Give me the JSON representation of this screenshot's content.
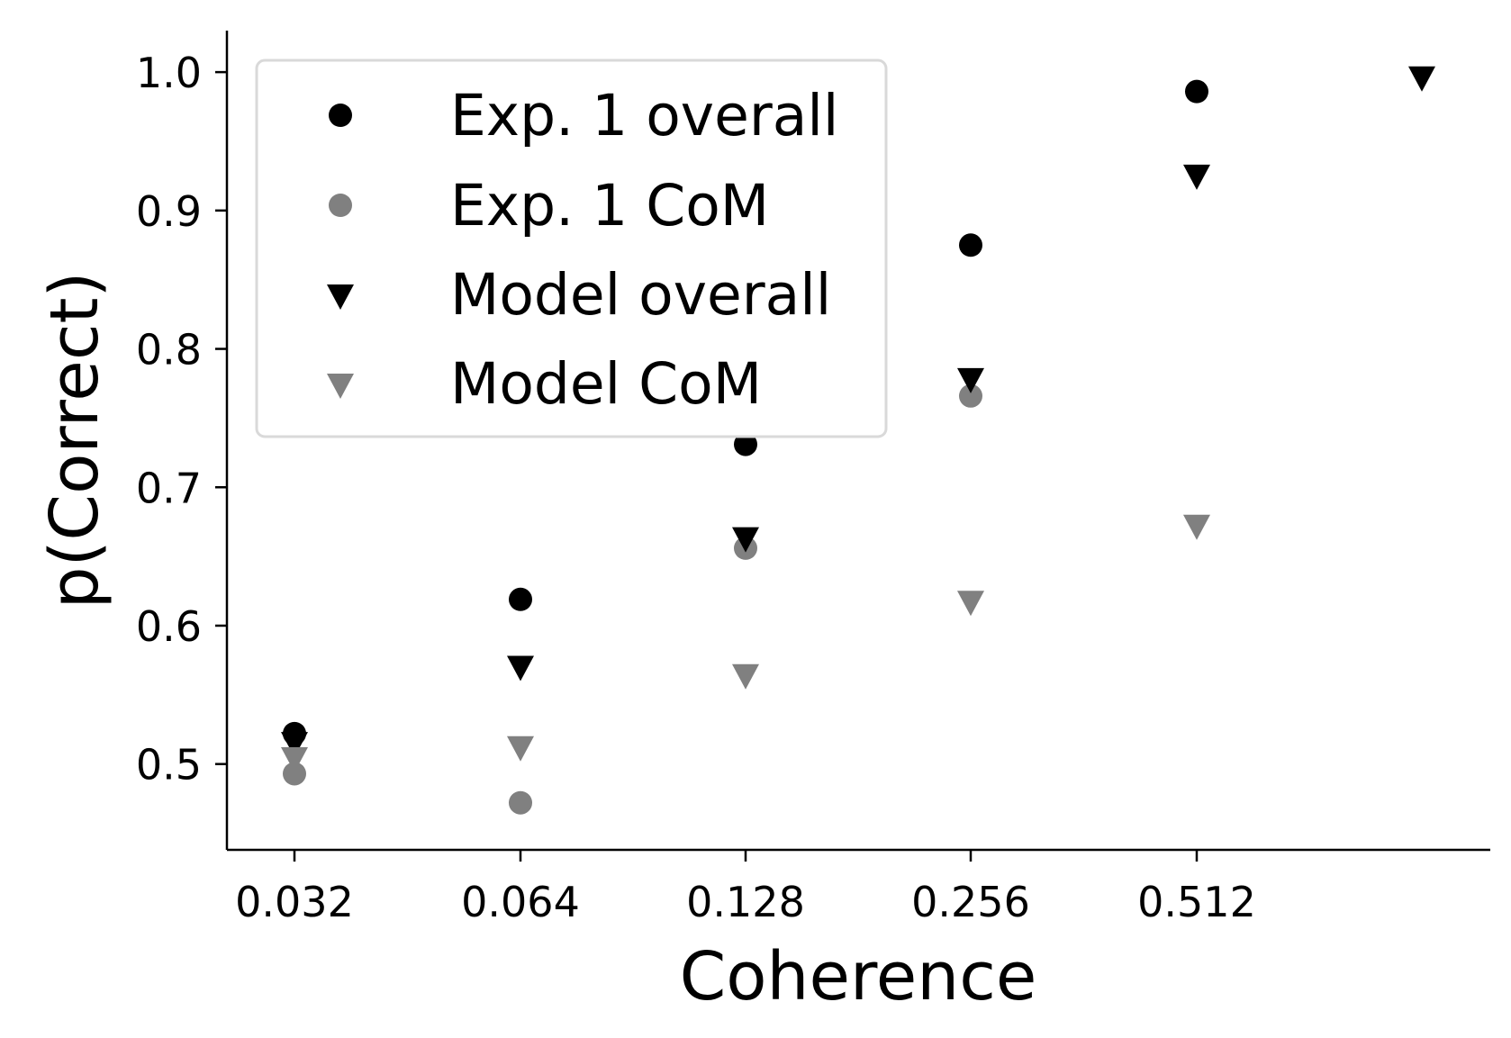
{
  "chart_data": {
    "type": "scatter",
    "xlabel": "Coherence",
    "ylabel": "p(Correct)",
    "x_ticks": [
      "0.032",
      "0.064",
      "0.128",
      "0.256",
      "0.512"
    ],
    "y_ticks": [
      "0.5",
      "0.6",
      "0.7",
      "0.8",
      "0.9",
      "1.0"
    ],
    "ylim": [
      0.438,
      1.03
    ],
    "grid": false,
    "legend_position": "upper-left",
    "series": [
      {
        "name": "Exp. 1 overall",
        "marker": "circle",
        "color": "#000000",
        "points": [
          {
            "x": "0.032",
            "y": 0.522
          },
          {
            "x": "0.064",
            "y": 0.619
          },
          {
            "x": "0.128",
            "y": 0.731
          },
          {
            "x": "0.256",
            "y": 0.875
          },
          {
            "x": "0.512",
            "y": 0.986
          }
        ]
      },
      {
        "name": "Exp. 1 CoM",
        "marker": "circle",
        "color": "#808080",
        "points": [
          {
            "x": "0.032",
            "y": 0.493
          },
          {
            "x": "0.064",
            "y": 0.472
          },
          {
            "x": "0.128",
            "y": 0.656
          },
          {
            "x": "0.256",
            "y": 0.766
          }
        ]
      },
      {
        "name": "Model overall",
        "marker": "triangle-down",
        "color": "#000000",
        "points": [
          {
            "x": "0.032",
            "y": 0.516
          },
          {
            "x": "0.064",
            "y": 0.571
          },
          {
            "x": "0.128",
            "y": 0.664
          },
          {
            "x": "0.256",
            "y": 0.779
          },
          {
            "x": "0.512",
            "y": 0.926
          },
          {
            "x": "1.024",
            "y": 0.997
          }
        ]
      },
      {
        "name": "Model CoM",
        "marker": "triangle-down",
        "color": "#808080",
        "points": [
          {
            "x": "0.032",
            "y": 0.505
          },
          {
            "x": "0.064",
            "y": 0.513
          },
          {
            "x": "0.128",
            "y": 0.565
          },
          {
            "x": "0.256",
            "y": 0.618
          },
          {
            "x": "0.512",
            "y": 0.673
          }
        ]
      }
    ]
  }
}
